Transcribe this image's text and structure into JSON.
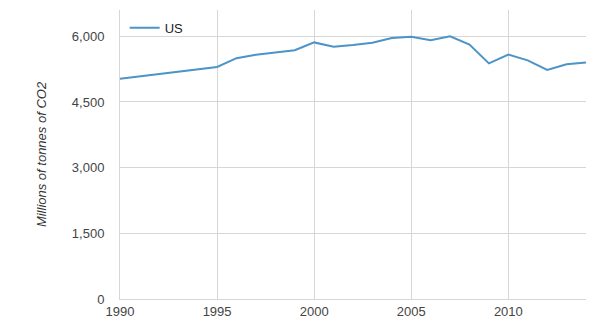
{
  "chart_data": {
    "type": "line",
    "y_label": "Millions of tonnes of CO2",
    "x": [
      1990,
      1995,
      1996,
      1997,
      1998,
      1999,
      2000,
      2001,
      2002,
      2003,
      2004,
      2005,
      2006,
      2007,
      2008,
      2009,
      2010,
      2011,
      2012,
      2013,
      2014
    ],
    "series": [
      {
        "name": "US",
        "color": "#4c93c8",
        "values": [
          5030,
          5300,
          5500,
          5580,
          5630,
          5680,
          5860,
          5760,
          5800,
          5850,
          5960,
          5990,
          5910,
          6000,
          5810,
          5380,
          5580,
          5450,
          5230,
          5360,
          5400
        ]
      }
    ],
    "xlim": [
      1990,
      2014
    ],
    "xticks": [
      1990,
      1995,
      2000,
      2005,
      2010
    ],
    "ylim": [
      0,
      6600
    ],
    "yticks": [
      0,
      {
        "value": 1500,
        "label": "1,500"
      },
      {
        "value": 3000,
        "label": "3,000"
      },
      {
        "value": 4500,
        "label": "4,500"
      },
      {
        "value": 6000,
        "label": "6,000"
      }
    ],
    "grid": true,
    "legend": "top left"
  }
}
